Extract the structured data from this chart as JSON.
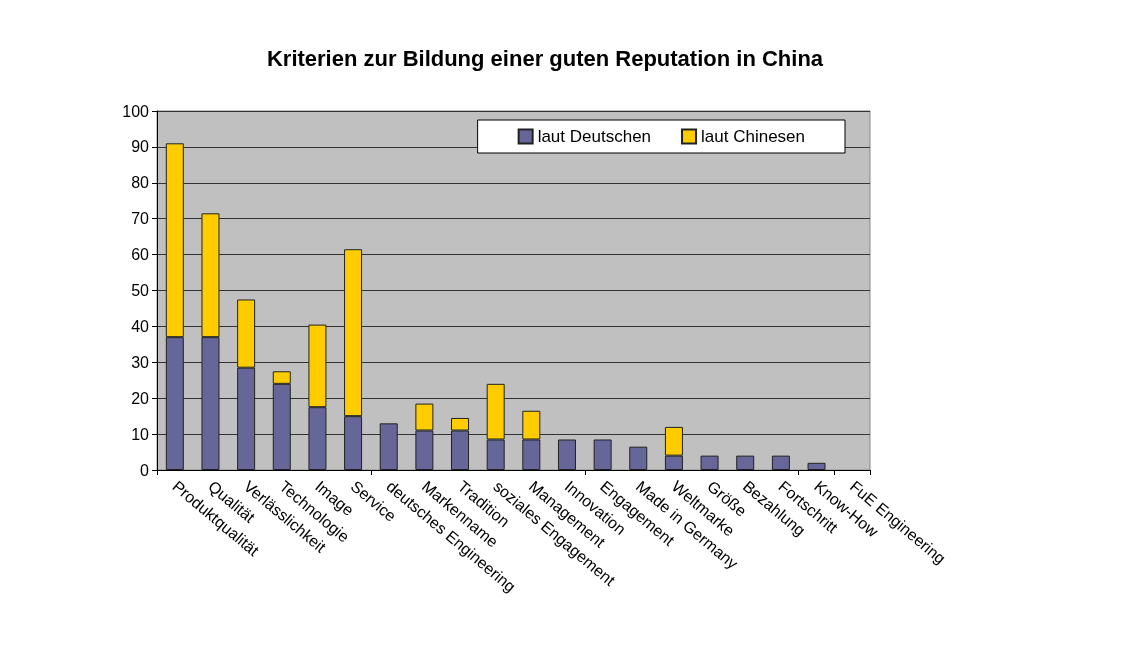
{
  "chart_data": {
    "type": "bar",
    "title": "Kriterien zur Bildung einer guten Reputation in China",
    "categories": [
      "Produktqualität",
      "Qualität",
      "Verlässlichkeit",
      "Technologie",
      "Image",
      "Service",
      "deutsches Engineering",
      "Markenname",
      "Tradition",
      "soziales Engagement",
      "Management",
      "Innovation",
      "Engagement",
      "Made in Germany",
      "Weltmarke",
      "Größe",
      "Bezahlung",
      "Fortschritt",
      "Know-How",
      "FuE Engineering"
    ],
    "series": [
      {
        "name": "laut Deutschen",
        "color": "#666699",
        "values": [
          37,
          37,
          28.5,
          24,
          17.5,
          15,
          13,
          11,
          11,
          8.5,
          8.5,
          8.5,
          8.5,
          6.5,
          4,
          4,
          4,
          4,
          2,
          0
        ]
      },
      {
        "name": "laut Chinesen",
        "color": "#ffcc00",
        "values": [
          54,
          34.5,
          19,
          3.5,
          23,
          46.5,
          0,
          7.5,
          3.5,
          15.5,
          8,
          0,
          0,
          0,
          8,
          0,
          0,
          0,
          0,
          0
        ]
      }
    ],
    "stacked": true,
    "ylim": [
      0,
      100
    ],
    "yticks": [
      0,
      10,
      20,
      30,
      40,
      50,
      60,
      70,
      80,
      90,
      100
    ],
    "grid": "y",
    "legend": "top right"
  }
}
